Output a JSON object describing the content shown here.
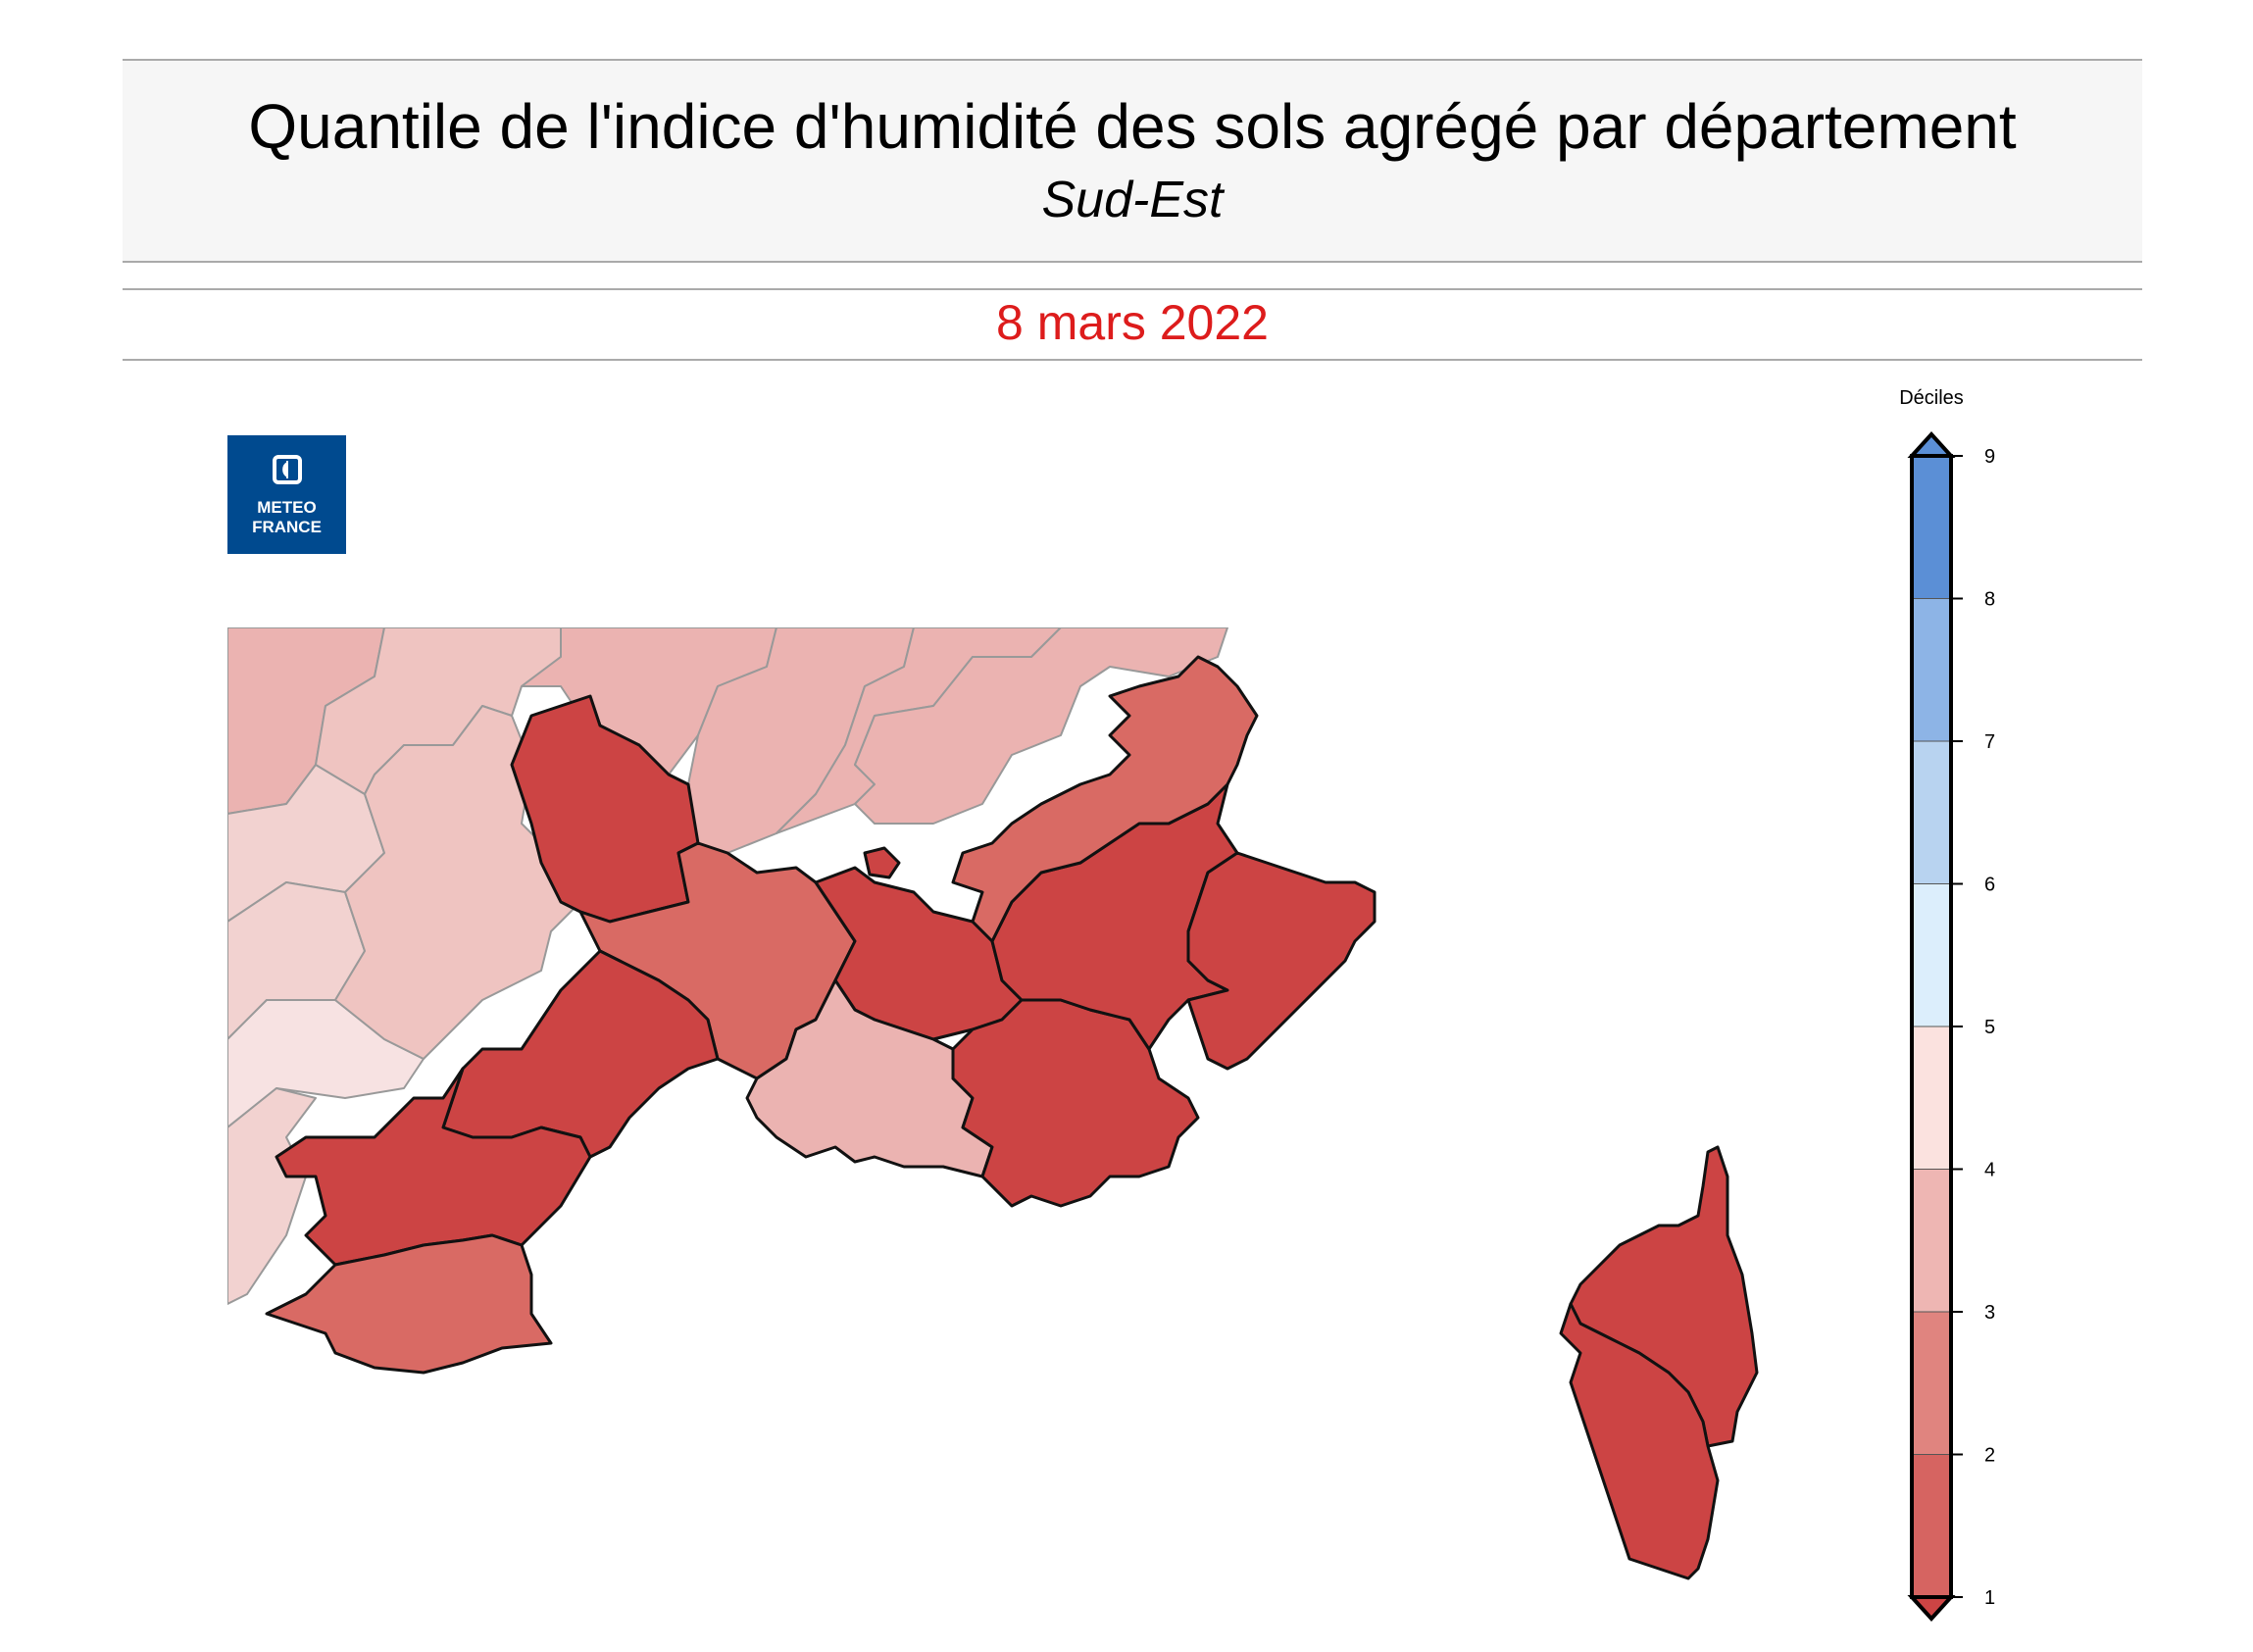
{
  "header": {
    "title": "Quantile de l'indice d'humidité des sols agrégé par département",
    "region": "Sud-Est",
    "date": "8 mars 2022"
  },
  "logo": {
    "line1": "METEO",
    "line2": "FRANCE",
    "icon": "meteo-france-logo-icon"
  },
  "legend": {
    "title": "Déciles",
    "ticks": [
      "9",
      "8",
      "7",
      "6",
      "5",
      "4",
      "3",
      "2",
      "1"
    ],
    "colors": [
      "#5b8fd6",
      "#8db4e6",
      "#b8d3f0",
      "#dceefc",
      "#fbe2df",
      "#eeb6b3",
      "#e0847f",
      "#d66461"
    ]
  },
  "palette": {
    "dark": "#cc4444",
    "medium": "#d96a64",
    "light3": "#ebb3b1",
    "light4": "#efc4c1",
    "light5": "#f2d2d0",
    "lightest": "#f7e2e2"
  }
}
